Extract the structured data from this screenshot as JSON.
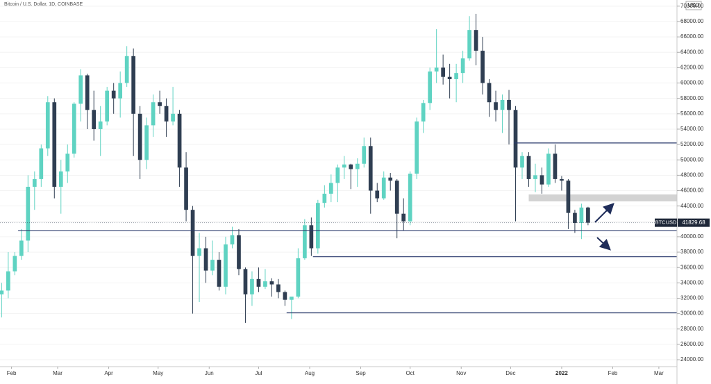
{
  "chart_data": {
    "type": "candlestick",
    "title": "Bitcoin / U.S. Dollar, 1D, COINBASE",
    "currency": "USD",
    "up_color": "#5fd3c2",
    "down_color": "#2f3e52",
    "level_color": "#2a3a6b",
    "zone_color": "#d3d3d3",
    "xlim": [
      25,
      436
    ],
    "xticks": [
      {
        "value": 32,
        "label": "Feb"
      },
      {
        "value": 60,
        "label": "Mar"
      },
      {
        "value": 91,
        "label": "Apr"
      },
      {
        "value": 121,
        "label": "May"
      },
      {
        "value": 152,
        "label": "Jun"
      },
      {
        "value": 182,
        "label": "Jul"
      },
      {
        "value": 213,
        "label": "Aug"
      },
      {
        "value": 244,
        "label": "Sep"
      },
      {
        "value": 274,
        "label": "Oct"
      },
      {
        "value": 305,
        "label": "Nov"
      },
      {
        "value": 335,
        "label": "Dec"
      },
      {
        "value": 366,
        "label": "2022"
      },
      {
        "value": 397,
        "label": "Feb"
      },
      {
        "value": 425,
        "label": "Mar"
      }
    ],
    "ylim": [
      23100,
      70800
    ],
    "yticks": [
      {
        "value": 24000,
        "label": "24000.00"
      },
      {
        "value": 26000,
        "label": "26000.00"
      },
      {
        "value": 28000,
        "label": "28000.00"
      },
      {
        "value": 30000,
        "label": "30000.00"
      },
      {
        "value": 32000,
        "label": "32000.00"
      },
      {
        "value": 34000,
        "label": "34000.00"
      },
      {
        "value": 36000,
        "label": "36000.00"
      },
      {
        "value": 38000,
        "label": "38000.00"
      },
      {
        "value": 40000,
        "label": "40000.00"
      },
      {
        "value": 42000,
        "label": "42000.00"
      },
      {
        "value": 44000,
        "label": "44000.00"
      },
      {
        "value": 46000,
        "label": "46000.00"
      },
      {
        "value": 48000,
        "label": "48000.00"
      },
      {
        "value": 50000,
        "label": "50000.00"
      },
      {
        "value": 52000,
        "label": "52000.00"
      },
      {
        "value": 54000,
        "label": "54000.00"
      },
      {
        "value": 56000,
        "label": "56000.00"
      },
      {
        "value": 58000,
        "label": "58000.00"
      },
      {
        "value": 60000,
        "label": "60000.00"
      },
      {
        "value": 62000,
        "label": "62000.00"
      },
      {
        "value": 64000,
        "label": "64000.00"
      },
      {
        "value": 66000,
        "label": "66000.00"
      },
      {
        "value": 68000,
        "label": "68000.00"
      },
      {
        "value": 70000,
        "label": "70000.00"
      }
    ],
    "x": [
      26,
      30,
      34,
      38,
      42,
      46,
      50,
      54,
      58,
      62,
      66,
      70,
      74,
      78,
      82,
      86,
      90,
      94,
      98,
      102,
      106,
      110,
      114,
      118,
      122,
      126,
      130,
      134,
      138,
      142,
      146,
      150,
      154,
      158,
      162,
      166,
      170,
      174,
      178,
      182,
      186,
      190,
      194,
      198,
      202,
      206,
      210,
      214,
      218,
      222,
      226,
      230,
      234,
      238,
      242,
      246,
      250,
      254,
      258,
      262,
      266,
      270,
      274,
      278,
      282,
      286,
      290,
      294,
      298,
      302,
      306,
      310,
      314,
      318,
      322,
      326,
      330,
      334,
      338,
      342,
      346,
      350,
      354,
      358,
      362,
      366,
      370,
      374,
      378,
      382
    ],
    "open": [
      32500,
      33000,
      35500,
      37500,
      39500,
      46500,
      47500,
      51500,
      57500,
      46500,
      48500,
      50800,
      57300,
      61000,
      56500,
      54000,
      55000,
      59000,
      58000,
      60000,
      63500,
      56000,
      50000,
      54500,
      57500,
      57000,
      55000,
      56000,
      49000,
      43500,
      37500,
      38500,
      35600,
      37000,
      33500,
      39000,
      40200,
      35800,
      32500,
      34500,
      33500,
      34200,
      33800,
      32800,
      31800,
      32200,
      37200,
      41500,
      38500,
      44400,
      45600,
      47000,
      49000,
      49400,
      48800,
      49500,
      51800,
      46000,
      45000,
      47700,
      47300,
      43000,
      42000,
      48200,
      55000,
      57400,
      61500,
      62000,
      60800,
      60500,
      61300,
      63200,
      66900,
      64200,
      60000,
      57500,
      56500,
      57800,
      56500,
      49000,
      50500,
      47500,
      48000,
      46800,
      50800,
      47500,
      47300,
      43100,
      41800,
      43800
    ],
    "high": [
      34000,
      38000,
      38000,
      41000,
      48000,
      48500,
      52000,
      58300,
      58000,
      50000,
      52000,
      57500,
      61800,
      61200,
      59000,
      57000,
      59500,
      60000,
      61500,
      64800,
      64500,
      57000,
      55500,
      58500,
      59000,
      58000,
      59500,
      56500,
      51000,
      44000,
      40500,
      40000,
      39500,
      38000,
      40000,
      41300,
      41000,
      36000,
      35500,
      36000,
      35800,
      34600,
      34500,
      33000,
      32000,
      38500,
      42300,
      42500,
      44800,
      46700,
      48100,
      49400,
      50500,
      49500,
      50200,
      52900,
      52900,
      47000,
      48500,
      48300,
      47500,
      45000,
      48500,
      55500,
      57800,
      62000,
      67000,
      63700,
      62500,
      62500,
      64200,
      68700,
      69000,
      66000,
      60500,
      59000,
      58500,
      59100,
      57000,
      51000,
      51000,
      49500,
      49000,
      51500,
      52000,
      47900,
      47500,
      43500,
      44300,
      43900
    ],
    "low": [
      29500,
      32000,
      35000,
      37000,
      38000,
      43500,
      46500,
      50500,
      45000,
      43000,
      47000,
      50300,
      55000,
      54000,
      52500,
      50500,
      54500,
      56000,
      55500,
      59500,
      50500,
      47500,
      48800,
      53000,
      56000,
      53000,
      54500,
      46500,
      42000,
      30000,
      31500,
      34000,
      35000,
      33000,
      32500,
      38500,
      35000,
      28800,
      31000,
      32800,
      33200,
      32200,
      32000,
      31000,
      29300,
      32000,
      37000,
      37500,
      37800,
      43800,
      44500,
      44500,
      47500,
      46200,
      46500,
      49000,
      43000,
      44500,
      44800,
      46000,
      39800,
      40800,
      41500,
      47500,
      53500,
      56500,
      60000,
      59800,
      58000,
      57500,
      60000,
      62900,
      62300,
      58500,
      55600,
      55000,
      53500,
      52000,
      42000,
      47500,
      46500,
      45800,
      45600,
      46500,
      47000,
      46000,
      41000,
      40500,
      39700,
      41500
    ],
    "close": [
      33000,
      35500,
      37500,
      39500,
      46500,
      47500,
      51500,
      57500,
      46500,
      48500,
      50800,
      57300,
      61000,
      56500,
      54000,
      55000,
      59000,
      58000,
      60000,
      63500,
      56000,
      50000,
      54500,
      57500,
      57000,
      55000,
      56000,
      49000,
      43500,
      37500,
      38500,
      35600,
      37000,
      33500,
      39000,
      40200,
      35800,
      32500,
      34500,
      33500,
      34200,
      33800,
      32800,
      31800,
      32200,
      37200,
      41500,
      38500,
      44400,
      45600,
      47000,
      49000,
      49400,
      48800,
      49500,
      51800,
      46000,
      45000,
      47700,
      47300,
      43000,
      42000,
      48200,
      55000,
      57400,
      61500,
      62000,
      60800,
      60500,
      61300,
      63200,
      66900,
      64200,
      60000,
      57500,
      56500,
      57800,
      56500,
      49000,
      50500,
      47500,
      48000,
      46800,
      50800,
      47500,
      47300,
      43100,
      41800,
      43800,
      41829.68
    ],
    "levels": [
      {
        "value": 52200,
        "from": 337
      },
      {
        "value": 40800,
        "from": 36
      },
      {
        "value": 37400,
        "from": 215
      },
      {
        "value": 30100,
        "from": 199
      }
    ],
    "zone": {
      "low": 44600,
      "high": 45500,
      "from": 346
    },
    "symbol": "BTCUSD",
    "last_price": 41829.68
  }
}
